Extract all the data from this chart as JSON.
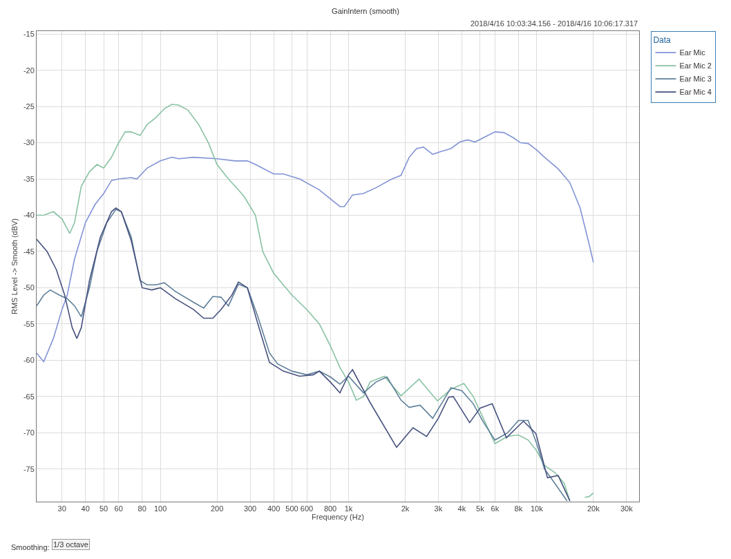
{
  "chart_data": {
    "type": "line",
    "title": "GainIntern (smooth)",
    "xlabel": "Frequency (Hz)",
    "ylabel": "RMS Level -> Smooth (dBV)",
    "legend_title": "Data",
    "legend": "right",
    "grid": true,
    "log": "x",
    "line_style": "solid",
    "marker": "none",
    "xlim": [
      22,
      35000
    ],
    "ylim": [
      -79.5,
      -14.6
    ],
    "xticks": [
      30,
      40,
      50,
      60,
      80,
      100,
      200,
      300,
      400,
      500,
      600,
      800,
      {
        "value": 1000,
        "label": "1k"
      },
      {
        "value": 2000,
        "label": "2k"
      },
      {
        "value": 3000,
        "label": "3k"
      },
      {
        "value": 4000,
        "label": "4k"
      },
      {
        "value": 5000,
        "label": "5k"
      },
      {
        "value": 6000,
        "label": "6k"
      },
      {
        "value": 8000,
        "label": "8k"
      },
      {
        "value": 10000,
        "label": "10k"
      },
      {
        "value": 20000,
        "label": "20k"
      },
      {
        "value": 30000,
        "label": "30k"
      }
    ],
    "yticks": [
      -15,
      -20,
      -25,
      -30,
      -35,
      -40,
      -45,
      -50,
      -55,
      -60,
      -65,
      -70,
      -75
    ],
    "annotations": [
      "2018/4/16 10:03:34.156 - 2018/4/16 10:06:17.317",
      "Smoothing:",
      "1/3 octave"
    ],
    "series": [
      {
        "name": "Ear Mic",
        "color": "#8093d6",
        "x": [
          22,
          24,
          27,
          30,
          32,
          35,
          40,
          45,
          50,
          55,
          60,
          70,
          75,
          85,
          100,
          115,
          125,
          150,
          200,
          250,
          290,
          320,
          400,
          450,
          550,
          700,
          900,
          950,
          1050,
          1200,
          1400,
          1700,
          1900,
          2100,
          2300,
          2500,
          2800,
          3100,
          3500,
          3900,
          4300,
          4700,
          5300,
          6000,
          6700,
          7500,
          8200,
          9000,
          10000,
          11000,
          13000,
          15000,
          17000,
          19000,
          20000
        ],
        "values": [
          -59,
          -60.2,
          -57,
          -53,
          -51,
          -46,
          -41,
          -38.5,
          -37,
          -35.2,
          -35,
          -34.8,
          -35,
          -33.5,
          -32.5,
          -32,
          -32.2,
          -32,
          -32.2,
          -32.5,
          -32.5,
          -33,
          -34.3,
          -34.3,
          -35,
          -36.5,
          -38.8,
          -38.8,
          -37.2,
          -37,
          -36.2,
          -35,
          -34.5,
          -32,
          -30.8,
          -30.6,
          -31.6,
          -31.2,
          -30.8,
          -29.9,
          -29.6,
          -29.9,
          -29.2,
          -28.5,
          -28.6,
          -29.3,
          -30,
          -30.1,
          -31,
          -32,
          -33.6,
          -35.5,
          -39,
          -44,
          -46.5
        ]
      },
      {
        "name": "Ear Mic 2",
        "color": "#88c2a2",
        "x": [
          22,
          24,
          27,
          30,
          33,
          35,
          38,
          42,
          46,
          50,
          55,
          60,
          65,
          70,
          78,
          85,
          95,
          105,
          115,
          125,
          140,
          160,
          180,
          200,
          230,
          260,
          280,
          320,
          350,
          400,
          500,
          600,
          700,
          800,
          900,
          1000,
          1100,
          1200,
          1300,
          1550,
          1900,
          2370,
          2970,
          3500,
          4100,
          4600,
          5200,
          6000,
          7000,
          8000,
          9000,
          10000,
          11000,
          12500,
          14000,
          15000,
          16500,
          18000,
          19000,
          20000
        ],
        "values": [
          -40,
          -40,
          -39.5,
          -40.5,
          -42.5,
          -41,
          -36,
          -34,
          -33,
          -33.5,
          -32,
          -30,
          -28.5,
          -28.5,
          -29,
          -27.5,
          -26.5,
          -25.3,
          -24.7,
          -24.8,
          -25.5,
          -27.5,
          -30,
          -33,
          -35,
          -36.5,
          -37.5,
          -40,
          -45,
          -48,
          -51,
          -53,
          -55,
          -58,
          -61,
          -63,
          -65.5,
          -65,
          -63,
          -62.2,
          -64.9,
          -62.6,
          -65.6,
          -64,
          -63.2,
          -65,
          -68,
          -71.5,
          -70.5,
          -70.3,
          -71,
          -72.5,
          -74.5,
          -75.5,
          -77,
          -79.4,
          null,
          -78.9,
          -78.8,
          -78.3
        ]
      },
      {
        "name": "Ear Mic 3",
        "color": "#5d7f99",
        "x": [
          22,
          24,
          26,
          29,
          32,
          35,
          38,
          42,
          46,
          52,
          58,
          62,
          70,
          78,
          85,
          95,
          105,
          120,
          150,
          170,
          190,
          210,
          230,
          260,
          290,
          330,
          380,
          420,
          500,
          600,
          700,
          800,
          900,
          1000,
          1200,
          1400,
          1600,
          1900,
          2100,
          2400,
          2800,
          3200,
          3500,
          4000,
          4600,
          5200,
          6000,
          7000,
          8000,
          9000,
          10000,
          11000,
          12500,
          14500
        ],
        "values": [
          -52.5,
          -51,
          -50.3,
          -51,
          -51.5,
          -52.5,
          -54,
          -50,
          -45,
          -41,
          -39.2,
          -39.5,
          -43,
          -49,
          -49.6,
          -49.6,
          -49.3,
          -50.5,
          -52,
          -52.8,
          -51.2,
          -51.3,
          -52.5,
          -49.5,
          -50,
          -54,
          -59,
          -60.5,
          -61.5,
          -62,
          -61.5,
          -62.3,
          -63.3,
          -62.2,
          -64.5,
          -63,
          -62.3,
          -65.5,
          -66.5,
          -66.2,
          -68,
          -65.5,
          -63.8,
          -64.2,
          -66,
          -68.5,
          -71,
          -70,
          -68.3,
          -68.3,
          -71.5,
          -75,
          -77,
          -79.4
        ]
      },
      {
        "name": "Ear Mic 4",
        "color": "#46517f",
        "x": [
          22,
          25,
          28,
          31,
          34,
          36,
          38,
          42,
          48,
          55,
          58,
          62,
          70,
          80,
          90,
          100,
          120,
          150,
          170,
          190,
          210,
          240,
          260,
          290,
          330,
          380,
          450,
          550,
          650,
          700,
          800,
          900,
          1000,
          1050,
          1300,
          1800,
          2200,
          2600,
          3000,
          3400,
          3600,
          4400,
          5000,
          5800,
          6900,
          8500,
          9900,
          11400,
          13000,
          15000
        ],
        "values": [
          -43.3,
          -45,
          -47.5,
          -51,
          -55.5,
          -57,
          -55.5,
          -49,
          -43,
          -39.5,
          -39,
          -39.5,
          -43.5,
          -50,
          -50.3,
          -50,
          -51.5,
          -53,
          -54.2,
          -54.2,
          -53,
          -51,
          -49.2,
          -50,
          -55,
          -60.3,
          -61.5,
          -62.2,
          -62,
          -61.5,
          -63,
          -64.5,
          -62,
          -61.3,
          -65.8,
          -72,
          -69.3,
          -70.5,
          -68,
          -65.1,
          -65,
          -68.6,
          -66.6,
          -66,
          -70.7,
          -68.4,
          -70.1,
          -76.2,
          -75.9,
          -79.4
        ]
      }
    ]
  }
}
